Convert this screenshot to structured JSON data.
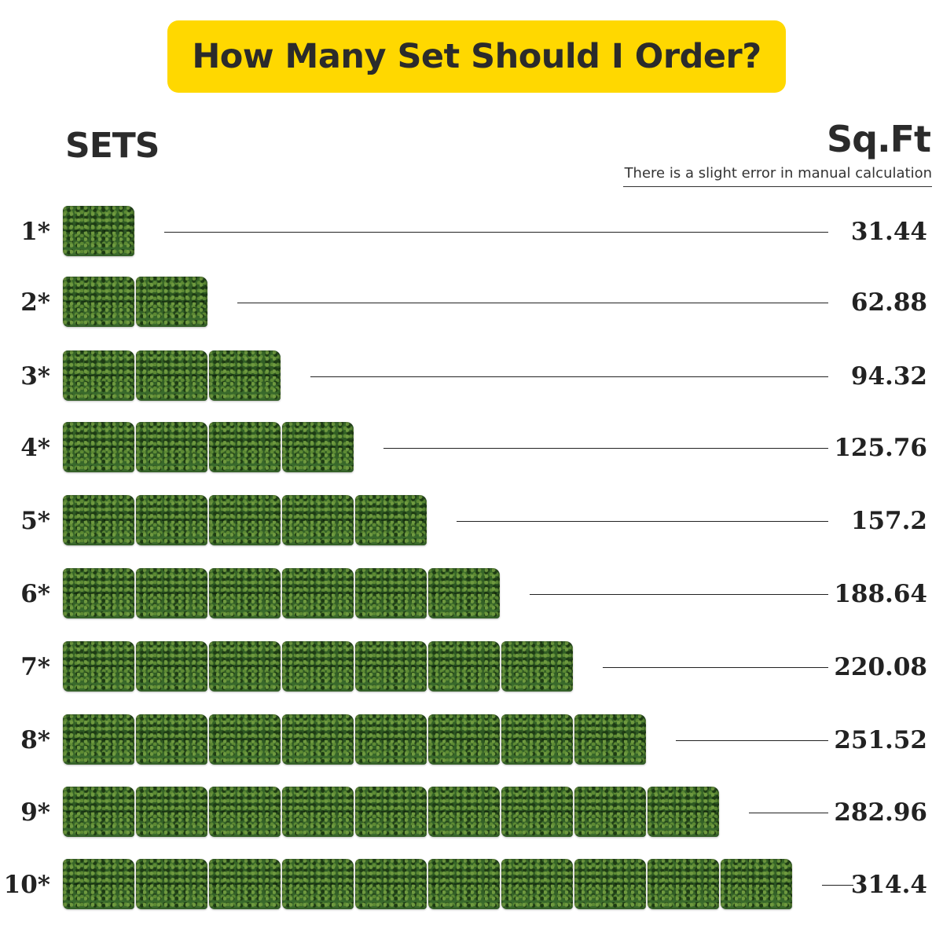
{
  "banner": {
    "title": "How Many Set Should I Order?",
    "color": "#ffd800"
  },
  "headers": {
    "sets": "SETS",
    "sqft": "Sq.Ft",
    "note": "There is a slight error in manual calculation"
  },
  "rows": [
    {
      "label": "1*",
      "count": 1,
      "value": "31.44"
    },
    {
      "label": "2*",
      "count": 2,
      "value": "62.88"
    },
    {
      "label": "3*",
      "count": 3,
      "value": "94.32"
    },
    {
      "label": "4*",
      "count": 4,
      "value": "125.76"
    },
    {
      "label": "5*",
      "count": 5,
      "value": "157.2"
    },
    {
      "label": "6*",
      "count": 6,
      "value": "188.64"
    },
    {
      "label": "7*",
      "count": 7,
      "value": "220.08"
    },
    {
      "label": "8*",
      "count": 8,
      "value": "251.52"
    },
    {
      "label": "9*",
      "count": 9,
      "value": "282.96"
    },
    {
      "label": "10*",
      "count": 10,
      "value": "314.4"
    }
  ]
}
